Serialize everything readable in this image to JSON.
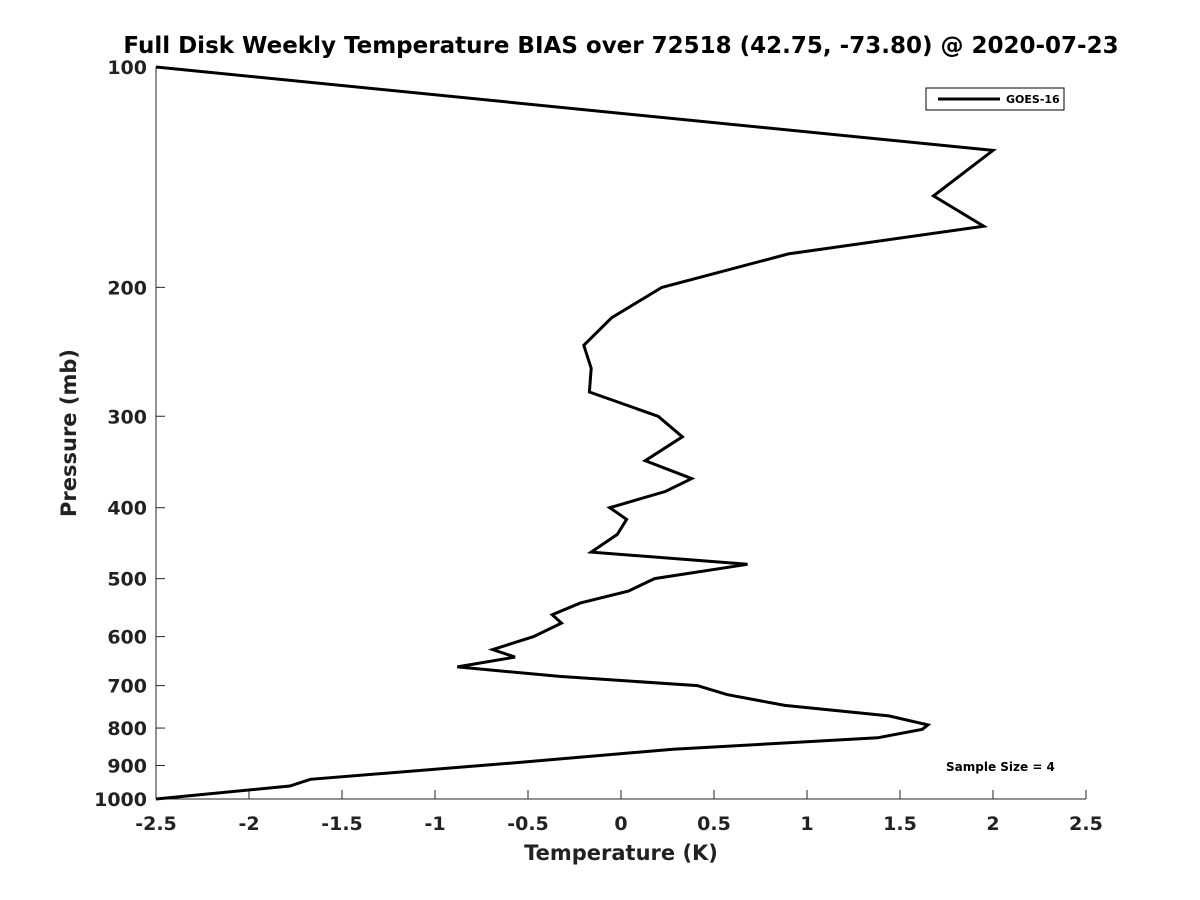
{
  "chart_data": {
    "type": "line",
    "title": "Full Disk Weekly Temperature BIAS over 72518 (42.75, -73.80) @ 2020-07-23",
    "xlabel": "Temperature (K)",
    "ylabel": "Pressure (mb)",
    "xlim": [
      -2.5,
      2.5
    ],
    "ylim": [
      100,
      1000
    ],
    "yscale": "log",
    "y_reversed": true,
    "xticks": [
      -2.5,
      -2,
      -1.5,
      -1,
      -0.5,
      0,
      0.5,
      1,
      1.5,
      2,
      2.5
    ],
    "xtick_labels": [
      "-2.5",
      "-2",
      "-1.5",
      "-1",
      "-0.5",
      "0",
      "0.5",
      "1",
      "1.5",
      "2",
      "2.5"
    ],
    "yticks": [
      100,
      200,
      300,
      400,
      500,
      600,
      700,
      800,
      900,
      1000
    ],
    "ytick_labels": [
      "100",
      "200",
      "300",
      "400",
      "500",
      "600",
      "700",
      "800",
      "900",
      "1000"
    ],
    "grid": false,
    "legend_position": "top-right",
    "annotation": "Sample Size = 4",
    "series": [
      {
        "name": "GOES-16",
        "color": "#000000",
        "x": [
          -2.5,
          2.0,
          1.68,
          1.95,
          0.9,
          0.22,
          -0.05,
          -0.2,
          -0.16,
          -0.17,
          0.2,
          0.33,
          0.13,
          0.38,
          0.24,
          -0.06,
          0.03,
          -0.02,
          -0.16,
          0.68,
          0.18,
          0.04,
          -0.22,
          -0.37,
          -0.32,
          -0.47,
          -0.69,
          -0.57,
          -0.88,
          -0.33,
          0.41,
          0.57,
          0.88,
          1.44,
          1.65,
          1.62,
          1.38,
          0.28,
          -0.52,
          -1.67,
          -1.78,
          -2.5
        ],
        "y": [
          100,
          130,
          150,
          165,
          180,
          200,
          220,
          240,
          258,
          278,
          300,
          320,
          345,
          365,
          380,
          400,
          415,
          435,
          460,
          478,
          500,
          520,
          540,
          560,
          575,
          600,
          625,
          640,
          660,
          680,
          700,
          720,
          745,
          770,
          792,
          803,
          825,
          855,
          890,
          940,
          960,
          1000
        ]
      }
    ]
  }
}
